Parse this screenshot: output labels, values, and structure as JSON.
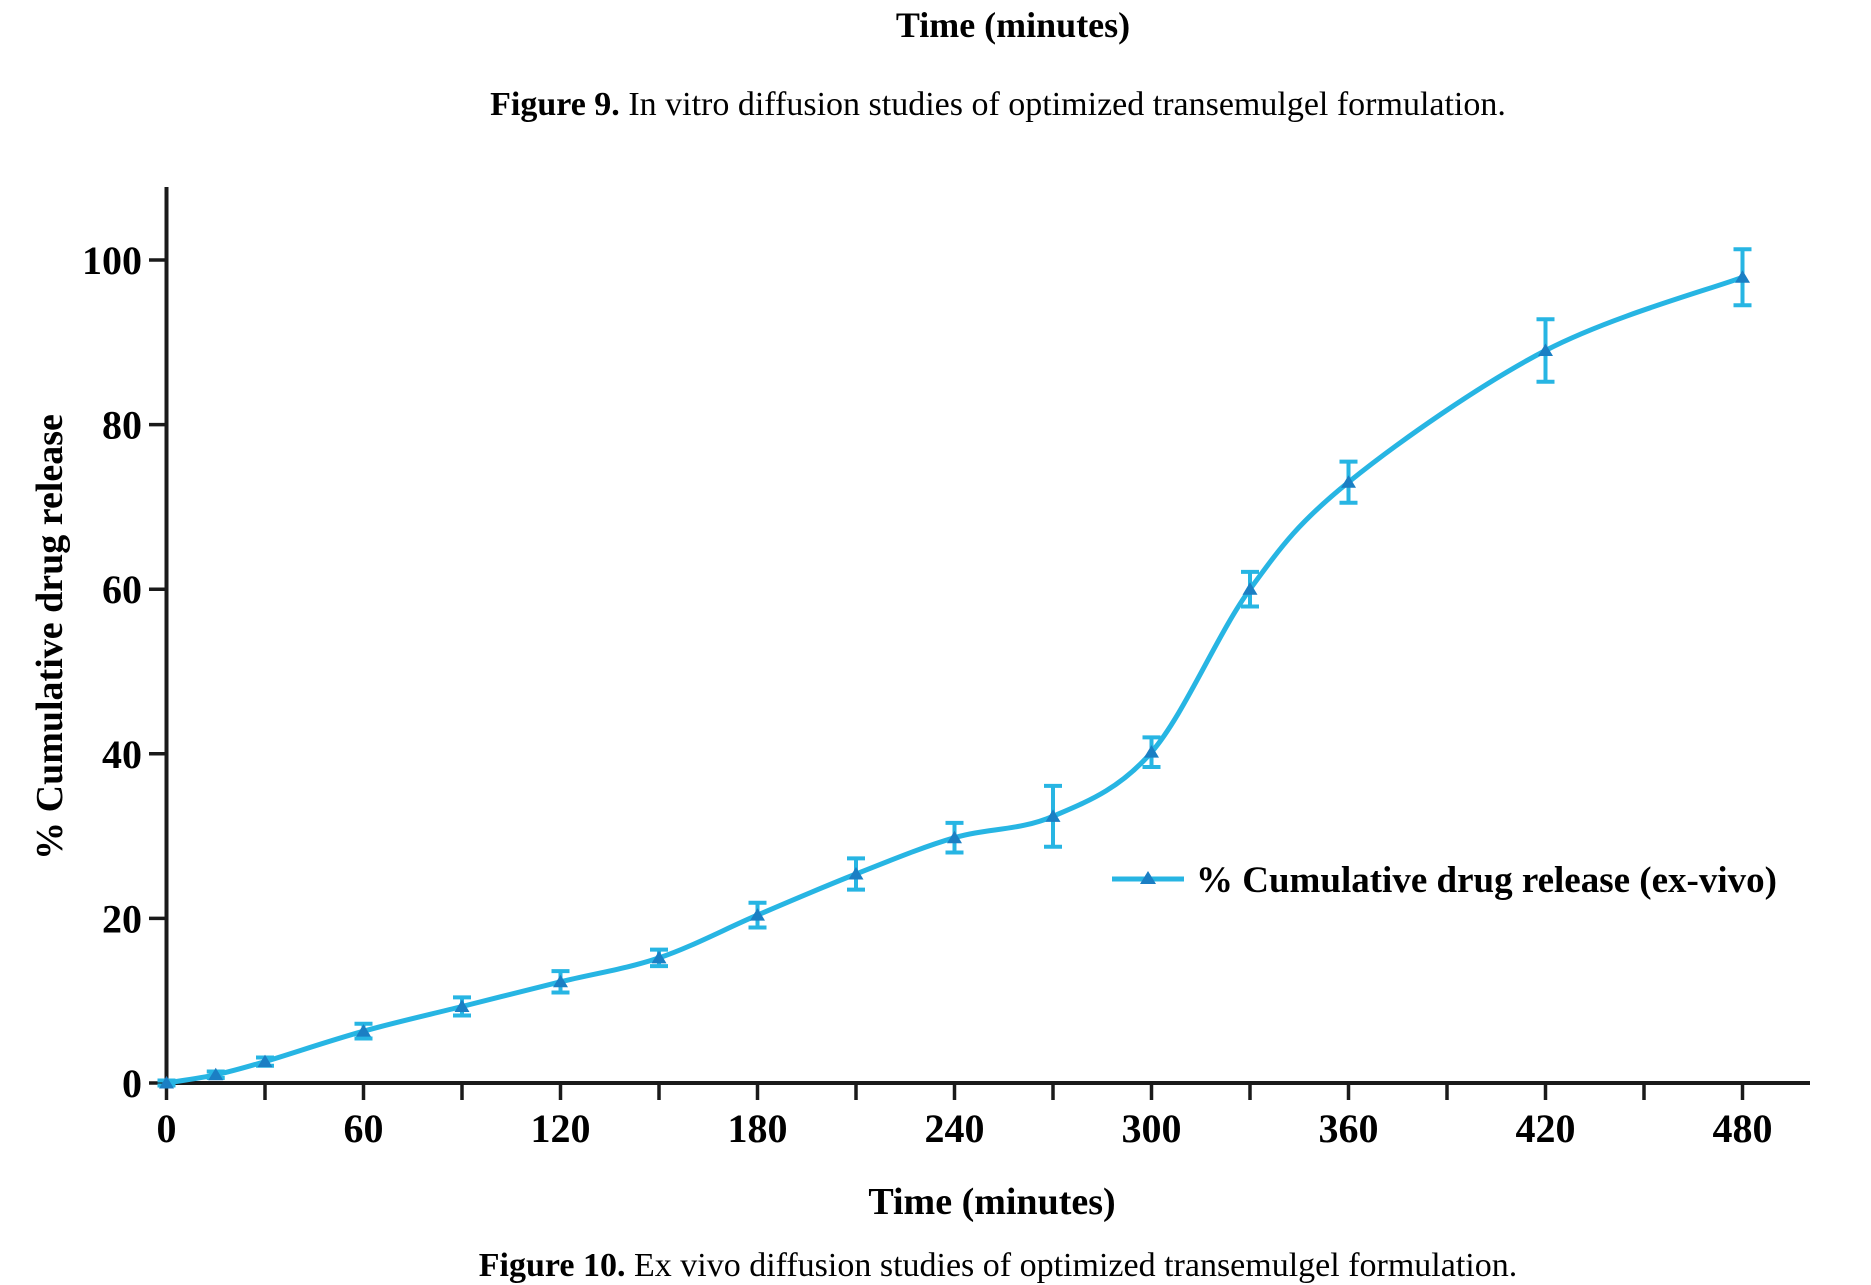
{
  "figure9": {
    "x_axis_label": "Time (minutes)",
    "caption_label": "Figure 9.",
    "caption_text": " In vitro diffusion studies of optimized transemulgel formulation."
  },
  "figure10": {
    "caption_label": "Figure 10.",
    "caption_text": " Ex vivo diffusion studies of optimized transemulgel formulation."
  },
  "chart_data": {
    "type": "line",
    "title": "",
    "xlabel": "Time (minutes)",
    "ylabel": "% Cumulative drug release",
    "xlim": [
      0,
      500
    ],
    "ylim": [
      0,
      110
    ],
    "x_major_ticks": [
      0,
      60,
      120,
      180,
      240,
      300,
      360,
      420,
      480
    ],
    "x_minor_tick_step": 30,
    "y_ticks": [
      0,
      20,
      40,
      60,
      80,
      100
    ],
    "grid": false,
    "marker": "triangle-up",
    "legend": {
      "label": "% Cumulative drug release (ex-vivo)",
      "position": "center-right"
    },
    "colors": {
      "line": "#27b5e3",
      "marker": "#1b7fc4",
      "axis": "#1a1a1a",
      "text": "#000000"
    },
    "series": [
      {
        "name": "% Cumulative drug release (ex-vivo)",
        "x": [
          0,
          15,
          30,
          60,
          90,
          120,
          150,
          180,
          210,
          240,
          270,
          300,
          330,
          360,
          420,
          480
        ],
        "y": [
          0,
          1.0,
          2.6,
          6.3,
          9.3,
          12.3,
          15.2,
          20.4,
          25.4,
          29.8,
          32.4,
          40.2,
          60.0,
          73.0,
          89.0,
          97.9
        ],
        "yerr": [
          0.3,
          0.4,
          0.5,
          0.9,
          1.1,
          1.3,
          1.0,
          1.5,
          1.9,
          1.8,
          3.7,
          1.8,
          2.1,
          2.5,
          3.8,
          3.4
        ]
      }
    ]
  }
}
